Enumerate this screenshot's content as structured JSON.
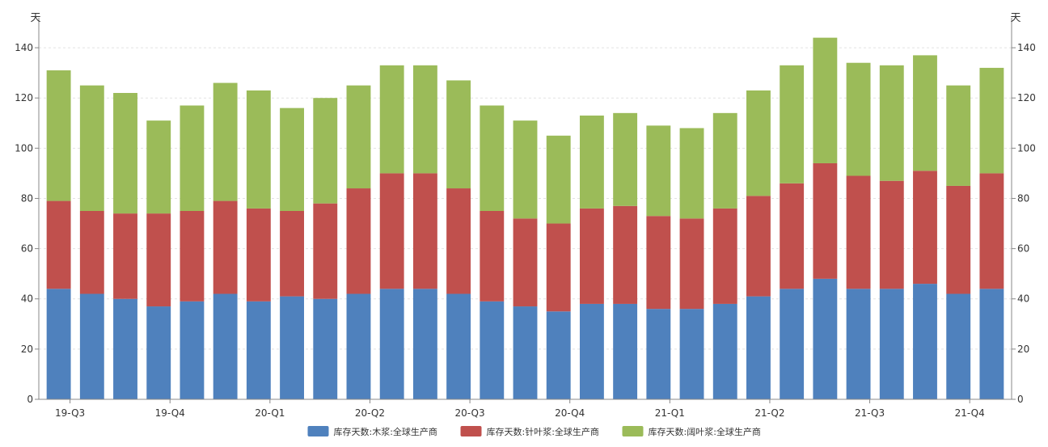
{
  "chart_data": {
    "type": "bar",
    "stacked": true,
    "title": "",
    "ylabel_left": "天",
    "ylabel_right": "天",
    "ylim": [
      0,
      150
    ],
    "yticks": [
      0,
      20,
      40,
      60,
      80,
      100,
      120,
      140
    ],
    "grid": "horizontal dashed",
    "legend_position": "bottom",
    "x_tick_labels": [
      "19-Q3",
      "19-Q4",
      "20-Q1",
      "20-Q2",
      "20-Q3",
      "20-Q4",
      "21-Q1",
      "21-Q2",
      "21-Q3",
      "21-Q4"
    ],
    "x_tick_every": 3,
    "series": [
      {
        "name": "库存天数:木浆:全球生产商",
        "color": "#4f81bd",
        "values": [
          44,
          42,
          40,
          37,
          39,
          42,
          39,
          41,
          40,
          42,
          44,
          44,
          42,
          39,
          37,
          35,
          38,
          38,
          36,
          36,
          38,
          41,
          44,
          48,
          44,
          44,
          46,
          42,
          44
        ]
      },
      {
        "name": "库存天数:针叶浆:全球生产商",
        "color": "#c0504d",
        "values": [
          35,
          33,
          34,
          37,
          36,
          37,
          37,
          34,
          38,
          42,
          46,
          46,
          42,
          36,
          35,
          35,
          38,
          39,
          37,
          36,
          38,
          40,
          42,
          46,
          45,
          43,
          45,
          43,
          46
        ]
      },
      {
        "name": "库存天数:阔叶浆:全球生产商",
        "color": "#9bbb59",
        "values": [
          52,
          50,
          48,
          37,
          42,
          47,
          47,
          41,
          42,
          41,
          43,
          43,
          43,
          42,
          39,
          35,
          37,
          37,
          36,
          36,
          38,
          42,
          47,
          50,
          45,
          46,
          46,
          40,
          42
        ]
      }
    ]
  }
}
